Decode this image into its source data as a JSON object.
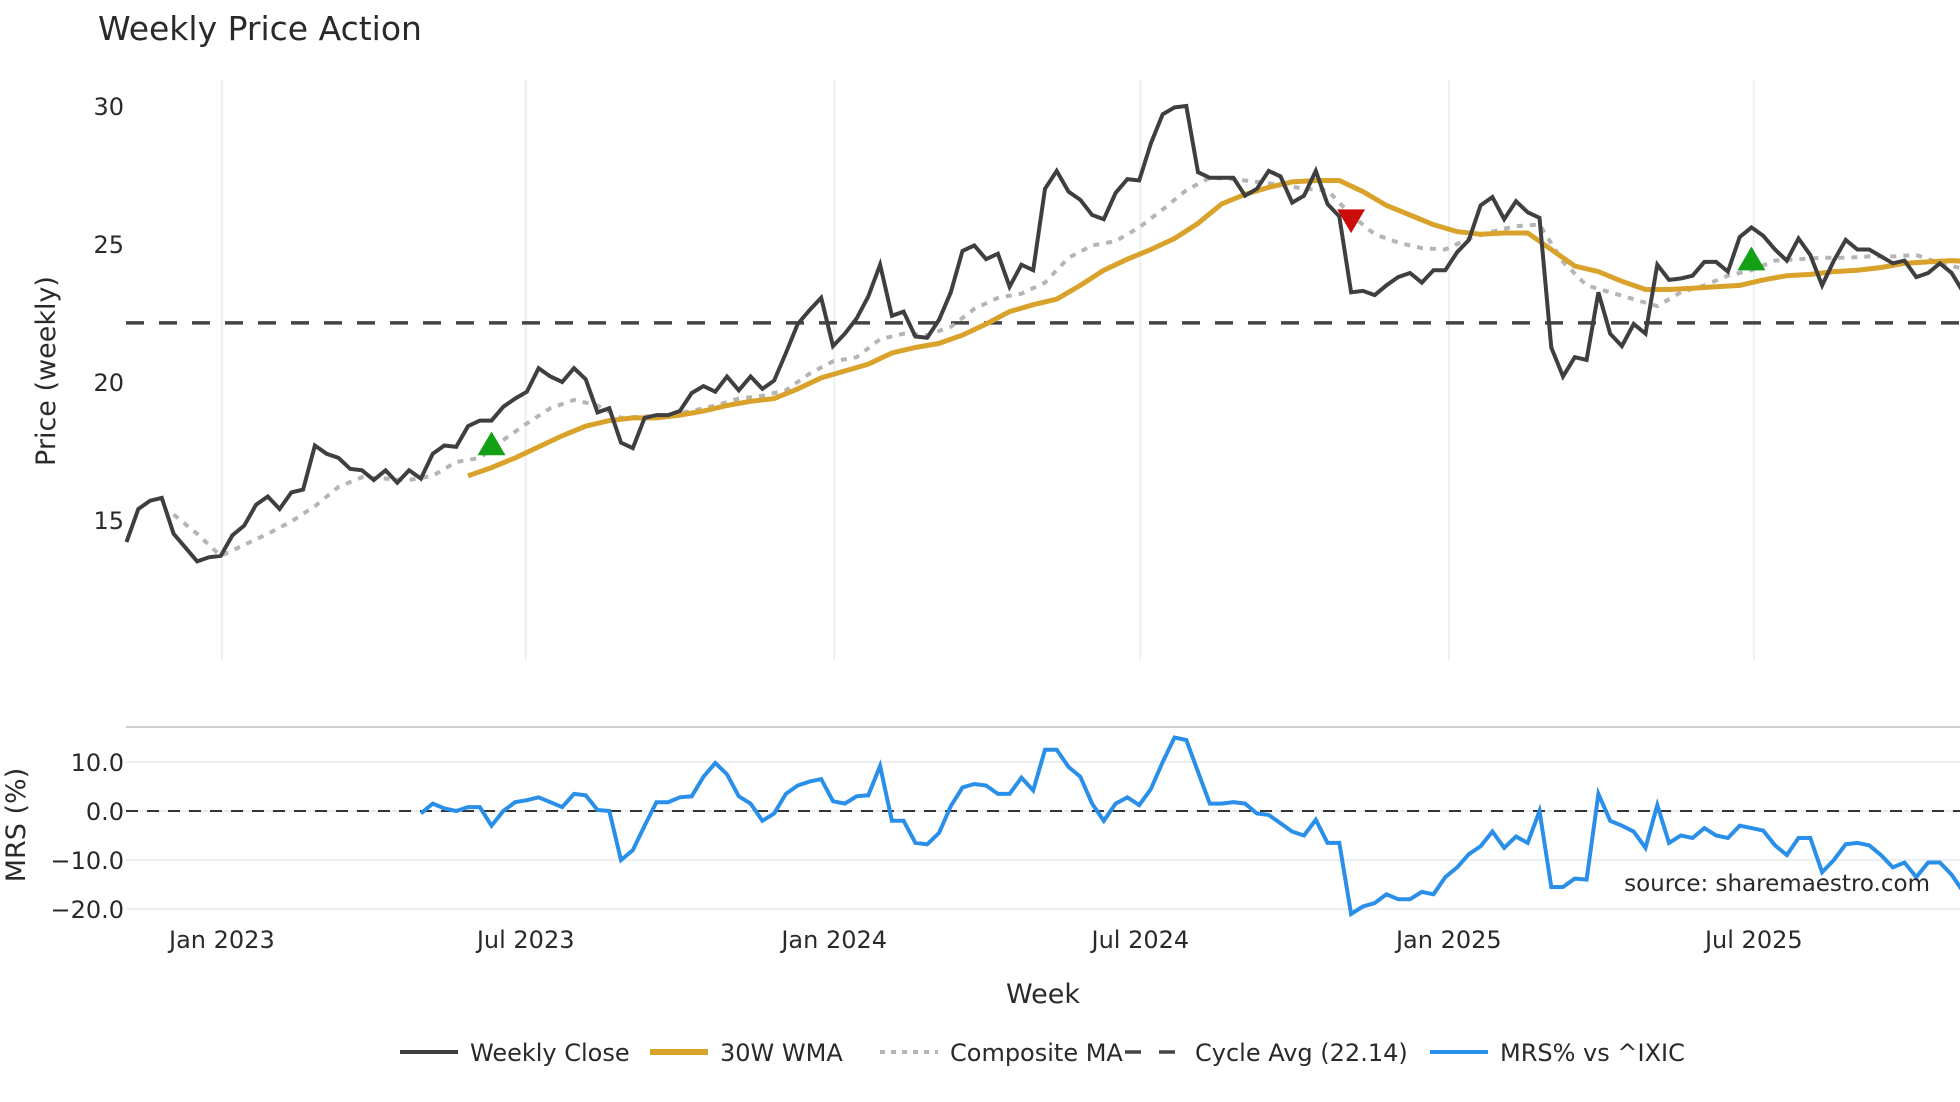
{
  "chart_data": {
    "type": "line",
    "title": "Weekly Price Action",
    "colors": {
      "weekly_close": "#3f3f3f",
      "wma": "#d9a22b",
      "composite": "#b5b5b5",
      "cycle_avg": "#444444",
      "mrs": "#2a8fe8",
      "buy_marker": "#14a014",
      "sell_marker": "#cc0b0b",
      "grid": "#eceff2",
      "text": "#2a2a2a",
      "watermark": "#8c8c8c"
    },
    "price_panel": {
      "ylabel": "Price (weekly)",
      "yticks": [
        15,
        20,
        25,
        30
      ],
      "ylim": [
        12.7,
        31
      ],
      "cycle_avg": 22.14
    },
    "mrs_panel": {
      "ylabel": "MRS (%)",
      "yticks": [
        -20.0,
        -10.0,
        0.0,
        10.0
      ],
      "ytick_labels": [
        "−20.0",
        "−10.0",
        "0.0",
        "10.0"
      ],
      "zero_line": 0.0
    },
    "xlabel": "Week",
    "xticks": [
      {
        "label": "Jan 2023",
        "index": 8.1
      },
      {
        "label": "Jul 2023",
        "index": 33.9
      },
      {
        "label": "Jan 2024",
        "index": 60.1
      },
      {
        "label": "Jul 2024",
        "index": 86.1
      },
      {
        "label": "Jan 2025",
        "index": 112.3
      },
      {
        "label": "Jul 2025",
        "index": 138.2
      }
    ],
    "watermark": "source: sharemaestro.com",
    "legend": [
      {
        "label": "Weekly Close",
        "style": "solid",
        "color": "#3f3f3f"
      },
      {
        "label": "30W WMA",
        "style": "solid-thick",
        "color": "#d9a22b"
      },
      {
        "label": "Composite MA",
        "style": "dotted",
        "color": "#b5b5b5"
      },
      {
        "label": "Cycle Avg (22.14)",
        "style": "dashed",
        "color": "#444444"
      },
      {
        "label": "MRS% vs ^IXIC",
        "style": "solid",
        "color": "#2a8fe8"
      }
    ],
    "series": [
      {
        "name": "Weekly Close",
        "start_index": 0,
        "values": [
          14.2,
          15.4,
          15.7,
          15.8,
          14.5,
          14.0,
          13.5,
          13.65,
          13.7,
          14.45,
          14.8,
          15.55,
          15.85,
          15.4,
          16.0,
          16.1,
          17.7,
          17.4,
          17.25,
          16.85,
          16.8,
          16.45,
          16.8,
          16.35,
          16.8,
          16.5,
          17.4,
          17.7,
          17.65,
          18.4,
          18.6,
          18.6,
          19.1,
          19.4,
          19.65,
          20.5,
          20.2,
          20.0,
          20.5,
          20.1,
          18.9,
          19.05,
          17.8,
          17.6,
          18.7,
          18.8,
          18.8,
          18.95,
          19.6,
          19.85,
          19.65,
          20.2,
          19.7,
          20.2,
          19.75,
          20.05,
          21.05,
          22.1,
          22.6,
          23.05,
          21.3,
          21.75,
          22.3,
          23.1,
          24.25,
          22.4,
          22.55,
          21.65,
          21.6,
          22.25,
          23.25,
          24.75,
          24.95,
          24.45,
          24.65,
          23.45,
          24.25,
          24.05,
          27.0,
          27.65,
          26.9,
          26.6,
          26.05,
          25.9,
          26.85,
          27.35,
          27.3,
          28.65,
          29.7,
          29.95,
          30.0,
          27.6,
          27.4,
          27.4,
          27.4,
          26.75,
          27.0,
          27.65,
          27.45,
          26.5,
          26.75,
          27.65,
          26.45,
          26.0,
          23.25,
          23.3,
          23.15,
          23.5,
          23.8,
          23.95,
          23.6,
          24.05,
          24.05,
          24.7,
          25.15,
          26.4,
          26.7,
          25.9,
          26.55,
          26.15,
          25.95,
          21.25,
          20.2,
          20.9,
          20.8,
          23.25,
          21.75,
          21.3,
          22.1,
          21.75,
          24.25,
          23.7,
          23.75,
          23.85,
          24.35,
          24.35,
          24.0,
          25.25,
          25.6,
          25.3,
          24.8,
          24.4,
          25.2,
          24.6,
          23.5,
          24.4,
          25.15,
          24.8,
          24.8,
          24.55,
          24.3,
          24.4,
          23.8,
          23.95,
          24.3,
          23.95,
          23.25
        ]
      },
      {
        "name": "30W WMA",
        "start_index": 29,
        "step": 2,
        "values": [
          16.6,
          16.9,
          17.25,
          17.65,
          18.05,
          18.4,
          18.6,
          18.7,
          18.7,
          18.8,
          18.95,
          19.15,
          19.3,
          19.4,
          19.75,
          20.15,
          20.4,
          20.65,
          21.05,
          21.25,
          21.4,
          21.7,
          22.1,
          22.55,
          22.8,
          23.0,
          23.5,
          24.05,
          24.45,
          24.8,
          25.2,
          25.75,
          26.45,
          26.8,
          27.05,
          27.25,
          27.3,
          27.3,
          26.9,
          26.4,
          26.05,
          25.7,
          25.45,
          25.35,
          25.4,
          25.4,
          24.8,
          24.2,
          24.0,
          23.65,
          23.35,
          23.35,
          23.4,
          23.45,
          23.5,
          23.7,
          23.85,
          23.9,
          24.0,
          24.05,
          24.15,
          24.3,
          24.35,
          24.4,
          24.35
        ]
      },
      {
        "name": "Composite MA",
        "start_index": 4,
        "step": 2,
        "values": [
          15.2,
          14.5,
          13.7,
          14.1,
          14.5,
          14.95,
          15.5,
          16.2,
          16.55,
          16.5,
          16.45,
          16.6,
          17.1,
          17.25,
          17.9,
          18.5,
          19.05,
          19.35,
          19.15,
          18.7,
          18.75,
          18.8,
          18.95,
          19.15,
          19.4,
          19.5,
          19.7,
          20.3,
          20.75,
          20.9,
          21.55,
          21.75,
          21.7,
          22.0,
          22.65,
          23.05,
          23.2,
          23.6,
          24.5,
          24.95,
          25.1,
          25.6,
          26.25,
          26.95,
          27.4,
          27.35,
          27.25,
          27.15,
          27.0,
          26.95,
          26.05,
          25.35,
          25.05,
          24.85,
          24.8,
          25.2,
          25.45,
          25.65,
          25.7,
          24.35,
          23.5,
          23.25,
          23.0,
          22.75,
          23.25,
          23.5,
          23.85,
          24.05,
          24.4,
          24.45,
          24.5,
          24.5,
          24.55,
          24.55,
          24.6,
          24.3,
          24.1
        ]
      },
      {
        "name": "MRS% vs ^IXIC",
        "panel": "mrs",
        "start_index": 25,
        "values": [
          -0.5,
          1.5,
          0.5,
          0,
          0.8,
          0.8,
          -3,
          0,
          1.8,
          2.2,
          2.8,
          1.8,
          0.8,
          3.5,
          3.2,
          0.2,
          0,
          -10,
          -8,
          -3,
          1.8,
          1.8,
          2.8,
          3,
          7,
          9.8,
          7.5,
          3,
          1.5,
          -2,
          -0.5,
          3.5,
          5.2,
          6,
          6.5,
          2,
          1.5,
          3,
          3.2,
          9.2,
          -2,
          -2,
          -6.5,
          -6.8,
          -4.5,
          1,
          4.8,
          5.5,
          5.2,
          3.5,
          3.5,
          6.8,
          4.2,
          12.5,
          12.5,
          9,
          7,
          1.5,
          -2,
          1.5,
          2.8,
          1.2,
          4.5,
          10,
          15,
          14.5,
          8,
          1.5,
          1.5,
          1.8,
          1.5,
          -0.5,
          -0.8,
          -2.5,
          -4.2,
          -5,
          -1.8,
          -6.5,
          -6.5,
          -21,
          -19.5,
          -18.8,
          -17,
          -18,
          -18,
          -16.5,
          -17,
          -13.5,
          -11.5,
          -8.8,
          -7.2,
          -4.2,
          -7.5,
          -5.2,
          -6.5,
          0,
          -15.5,
          -15.5,
          -13.8,
          -14,
          3.5,
          -2,
          -3,
          -4.2,
          -7.5,
          1.2,
          -6.5,
          -5,
          -5.5,
          -3.5,
          -5,
          -5.5,
          -3,
          -3.5,
          -4,
          -7,
          -9,
          -5.5,
          -5.5,
          -12.5,
          -10,
          -6.8,
          -6.5,
          -7,
          -9,
          -11.5,
          -10.5,
          -13.5,
          -10.5,
          -10.5,
          -13,
          -16.5
        ]
      }
    ],
    "markers": [
      {
        "type": "buy",
        "shape": "triangle-up",
        "index": 31,
        "value": 17.7
      },
      {
        "type": "sell",
        "shape": "triangle-down",
        "index": 104,
        "value": 25.9
      },
      {
        "type": "buy",
        "shape": "triangle-up",
        "index": 138,
        "value": 24.4
      }
    ]
  }
}
